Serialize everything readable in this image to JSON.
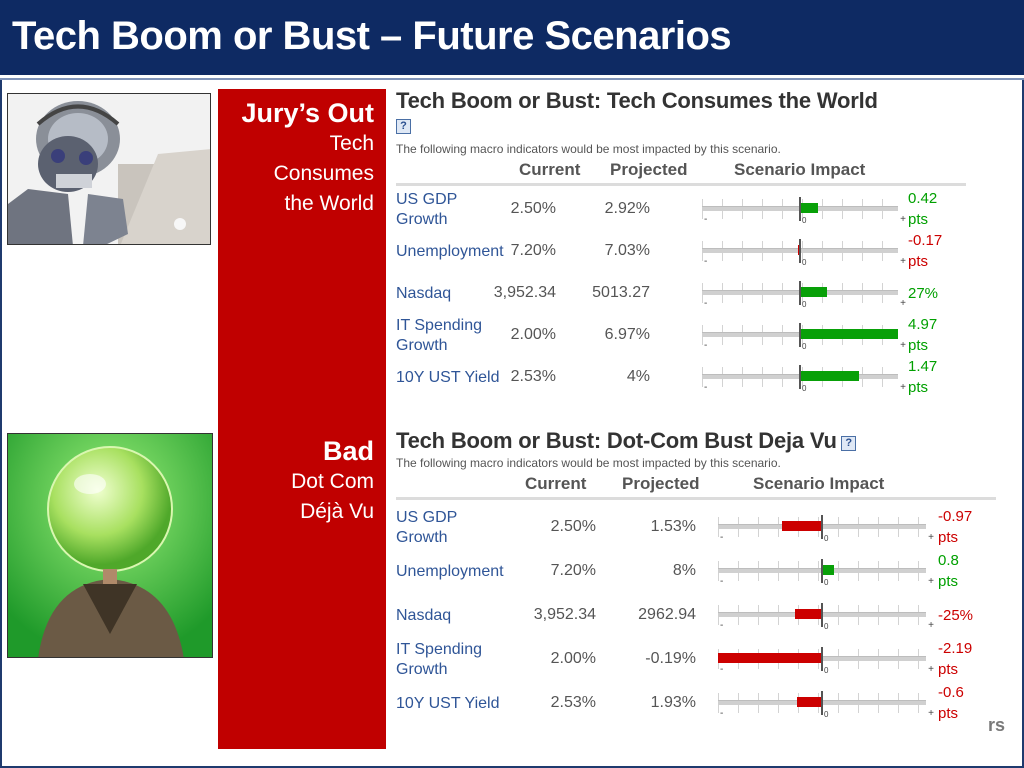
{
  "title": "Tech Boom or Bust – Future Scenarios",
  "scenarios": [
    {
      "rating": "Jury’s Out",
      "name_lines": [
        "Tech",
        "Consumes",
        "the World"
      ],
      "block_title": "Tech Boom or Bust: Tech Consumes the World",
      "help": "?",
      "subtitle": "The following macro indicators would be most impacted by this scenario.",
      "headers": {
        "current": "Current",
        "projected": "Projected",
        "impact": "Scenario Impact"
      },
      "rows": [
        {
          "name_lines": [
            "US GDP",
            "Growth"
          ],
          "current": "2.50%",
          "projected": "2.92%",
          "impact_lines": [
            "0.42",
            "pts"
          ],
          "impact_value": 0.42,
          "sign": "pos",
          "bar_fraction": 0.09
        },
        {
          "name_lines": [
            "Unemployment"
          ],
          "current": "7.20%",
          "projected": "7.03%",
          "impact_lines": [
            "-0.17",
            "pts"
          ],
          "impact_value": -0.17,
          "sign": "neg",
          "bar_fraction": 0.01
        },
        {
          "name_lines": [
            "Nasdaq"
          ],
          "current": "3,952.34",
          "projected": "5013.27",
          "impact_lines": [
            "27%"
          ],
          "impact_value": 27,
          "sign": "pos",
          "bar_fraction": 0.14
        },
        {
          "name_lines": [
            "IT Spending",
            "Growth"
          ],
          "current": "2.00%",
          "projected": "6.97%",
          "impact_lines": [
            "4.97",
            "pts"
          ],
          "impact_value": 4.97,
          "sign": "pos",
          "bar_fraction": 0.5
        },
        {
          "name_lines": [
            "10Y UST Yield"
          ],
          "current": "2.53%",
          "projected": "4%",
          "impact_lines": [
            "1.47",
            "pts"
          ],
          "impact_value": 1.47,
          "sign": "pos",
          "bar_fraction": 0.3
        }
      ]
    },
    {
      "rating": "Bad",
      "name_lines": [
        "Dot Com",
        "Déjà Vu"
      ],
      "block_title": "Tech Boom or Bust: Dot-Com Bust Deja Vu",
      "help": "?",
      "subtitle": "The following macro indicators would be most impacted by this scenario.",
      "headers": {
        "current": "Current",
        "projected": "Projected",
        "impact": "Scenario Impact"
      },
      "rows": [
        {
          "name_lines": [
            "US GDP",
            "Growth"
          ],
          "current": "2.50%",
          "projected": "1.53%",
          "impact_lines": [
            "-0.97",
            "pts"
          ],
          "impact_value": -0.97,
          "sign": "neg",
          "bar_fraction": 0.19
        },
        {
          "name_lines": [
            "Unemployment"
          ],
          "current": "7.20%",
          "projected": "8%",
          "impact_lines": [
            "0.8",
            "pts"
          ],
          "impact_value": 0.8,
          "sign": "pos",
          "bar_fraction": 0.06
        },
        {
          "name_lines": [
            "Nasdaq"
          ],
          "current": "3,952.34",
          "projected": "2962.94",
          "impact_lines": [
            "-25%"
          ],
          "impact_value": -25,
          "sign": "neg",
          "bar_fraction": 0.13
        },
        {
          "name_lines": [
            "IT Spending",
            "Growth"
          ],
          "current": "2.00%",
          "projected": "-0.19%",
          "impact_lines": [
            "-2.19",
            "pts"
          ],
          "impact_value": -2.19,
          "sign": "neg",
          "bar_fraction": 0.5
        },
        {
          "name_lines": [
            "10Y UST Yield"
          ],
          "current": "2.53%",
          "projected": "1.93%",
          "impact_lines": [
            "-0.6",
            "pts"
          ],
          "impact_value": -0.6,
          "sign": "neg",
          "bar_fraction": 0.12
        }
      ]
    }
  ],
  "bar_axis": {
    "minus": "-",
    "plus": "+",
    "zero": "0"
  },
  "corner_text": "rs",
  "images": [
    {
      "icon": "robot-with-laptop-photo"
    },
    {
      "icon": "crystal-ball-head-photo"
    }
  ],
  "colors": {
    "title_bg": "#0e2a63",
    "panel_red": "#c00000",
    "positive": "#00a000",
    "negative": "#cc0000"
  }
}
